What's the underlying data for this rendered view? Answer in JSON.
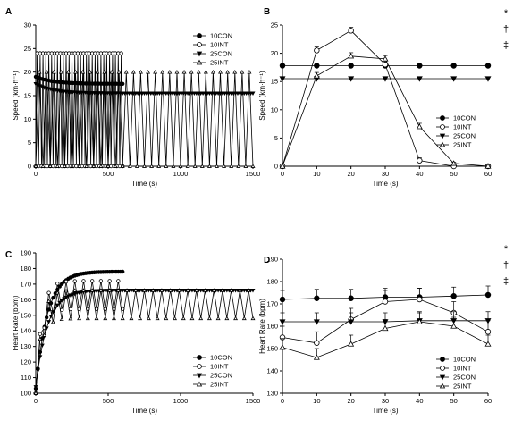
{
  "figure": {
    "legend_labels": [
      "10CON",
      "10INT",
      "25CON",
      "25INT"
    ],
    "significance_symbols": [
      "*",
      "†",
      "‡"
    ]
  },
  "chart_data": [
    {
      "panel": "A",
      "type": "line",
      "xlabel": "Time (s)",
      "ylabel": "Speed (km·h⁻¹)",
      "xlim": [
        0,
        1500
      ],
      "ylim": [
        0,
        30
      ],
      "xticks": [
        0,
        500,
        1000,
        1500
      ],
      "yticks": [
        0,
        5,
        10,
        15,
        20,
        25,
        30
      ],
      "legend_position": "top-right",
      "series": [
        {
          "name": "10CON",
          "marker": "filled-circle",
          "start_value": 19,
          "steady_value": 17.5,
          "duration": 600
        },
        {
          "name": "10INT",
          "marker": "open-circle",
          "low": 0,
          "high": 24,
          "period": 20,
          "duration": 600
        },
        {
          "name": "25CON",
          "marker": "filled-triangle-down",
          "start_value": 17.5,
          "steady_value": 15.5,
          "duration": 1500
        },
        {
          "name": "25INT",
          "marker": "open-triangle",
          "low": 0,
          "high": 20,
          "period": 50,
          "duration": 1500
        }
      ]
    },
    {
      "panel": "B",
      "type": "line",
      "xlabel": "Time (s)",
      "ylabel": "Speed (km·h⁻¹)",
      "xlim": [
        0,
        60
      ],
      "ylim": [
        0,
        25
      ],
      "xticks": [
        0,
        10,
        20,
        30,
        40,
        50,
        60
      ],
      "yticks": [
        0,
        5,
        10,
        15,
        20,
        25
      ],
      "legend_position": "bottom-right",
      "x": [
        0,
        10,
        20,
        30,
        40,
        50,
        60
      ],
      "series": [
        {
          "name": "10CON",
          "marker": "filled-circle",
          "values": [
            17.8,
            17.8,
            17.8,
            17.8,
            17.8,
            17.8,
            17.8
          ]
        },
        {
          "name": "10INT",
          "marker": "open-circle",
          "values": [
            0,
            20.5,
            24,
            18,
            1,
            0,
            0
          ],
          "errors": [
            0,
            0.6,
            0.6,
            0.6,
            0.5,
            0.3,
            0.3
          ]
        },
        {
          "name": "25CON",
          "marker": "filled-triangle-down",
          "values": [
            15.5,
            15.5,
            15.5,
            15.5,
            15.5,
            15.5,
            15.5
          ]
        },
        {
          "name": "25INT",
          "marker": "open-triangle",
          "values": [
            0,
            16,
            19.5,
            19,
            7,
            0.5,
            0
          ],
          "errors": [
            0,
            0.6,
            0.6,
            0.6,
            0.6,
            0.2,
            0.2
          ]
        }
      ]
    },
    {
      "panel": "C",
      "type": "line",
      "xlabel": "Time (s)",
      "ylabel": "Heart Rate (bpm)",
      "xlim": [
        0,
        1500
      ],
      "ylim": [
        100,
        190
      ],
      "xticks": [
        0,
        500,
        1000,
        1500
      ],
      "yticks": [
        100,
        110,
        120,
        130,
        140,
        150,
        160,
        170,
        180,
        190
      ],
      "legend_position": "bottom-right",
      "series": [
        {
          "name": "10CON",
          "marker": "filled-circle",
          "start_value": 103,
          "plateau": 178,
          "duration": 600
        },
        {
          "name": "10INT",
          "marker": "open-circle",
          "start_value": 100,
          "plateau_mid": 163,
          "amplitude": 9,
          "period": 60,
          "duration": 600
        },
        {
          "name": "25CON",
          "marker": "filled-triangle-down",
          "start_value": 104,
          "plateau": 166,
          "duration": 1500
        },
        {
          "name": "25INT",
          "marker": "open-triangle",
          "start_value": 100,
          "plateau_mid": 157,
          "amplitude": 9,
          "period": 60,
          "duration": 1500
        }
      ]
    },
    {
      "panel": "D",
      "type": "line",
      "xlabel": "Time (s)",
      "ylabel": "Heart Rate (bpm)",
      "xlim": [
        0,
        60
      ],
      "ylim": [
        130,
        190
      ],
      "xticks": [
        0,
        10,
        20,
        30,
        40,
        50,
        60
      ],
      "yticks": [
        130,
        140,
        150,
        160,
        170,
        180,
        190
      ],
      "legend_position": "bottom-right",
      "x": [
        0,
        10,
        20,
        30,
        40,
        50,
        60
      ],
      "series": [
        {
          "name": "10CON",
          "marker": "filled-circle",
          "values": [
            172,
            172.5,
            172.5,
            173,
            173,
            173.5,
            174
          ],
          "errors": [
            4,
            4,
            4,
            4,
            4,
            4,
            4
          ]
        },
        {
          "name": "10INT",
          "marker": "open-circle",
          "values": [
            155,
            152.5,
            163,
            171,
            172,
            166,
            157.5
          ],
          "errors": [
            5,
            5,
            5,
            5,
            5,
            5,
            5
          ]
        },
        {
          "name": "25CON",
          "marker": "filled-triangle-down",
          "values": [
            162,
            162,
            162,
            162,
            162.5,
            162.5,
            162.5
          ],
          "errors": [
            4,
            4,
            4,
            4,
            4,
            4,
            4
          ]
        },
        {
          "name": "25INT",
          "marker": "open-triangle",
          "values": [
            150.5,
            146,
            152,
            159,
            162,
            160,
            152
          ],
          "errors": [
            4,
            4,
            4,
            4,
            4,
            4,
            4
          ]
        }
      ]
    }
  ]
}
